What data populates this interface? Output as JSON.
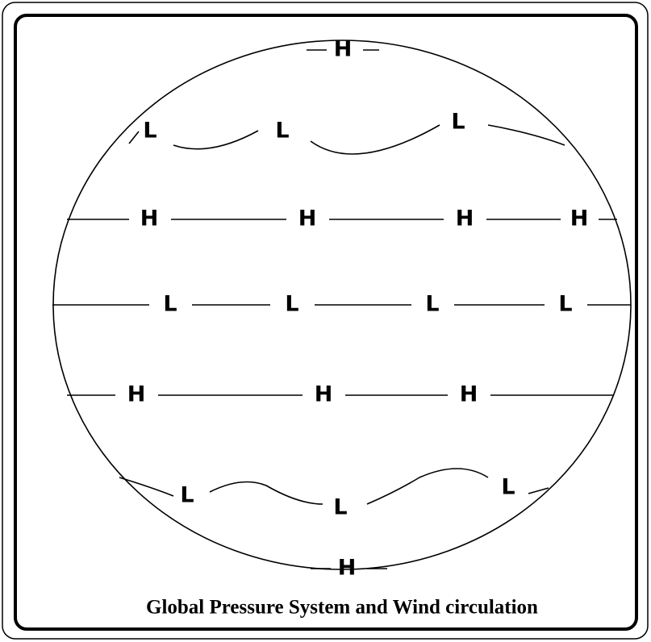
{
  "bands": [
    {
      "labels": [
        "H"
      ]
    },
    {
      "labels": [
        "L",
        "L",
        "L"
      ]
    },
    {
      "labels": [
        "H",
        "H",
        "H",
        "H"
      ]
    },
    {
      "labels": [
        "L",
        "L",
        "L",
        "L"
      ]
    },
    {
      "labels": [
        "H",
        "H",
        "H"
      ]
    },
    {
      "labels": [
        "L",
        "L",
        "L"
      ]
    },
    {
      "labels": [
        "H"
      ]
    }
  ],
  "caption": "Global Pressure System and Wind circulation"
}
